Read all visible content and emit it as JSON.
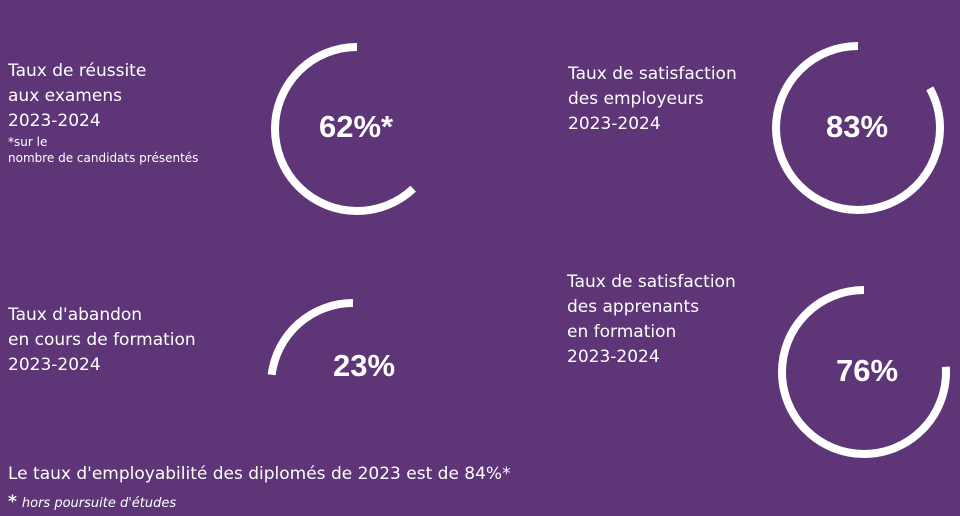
{
  "colors": {
    "background": "#5e3577",
    "text": "#ffffff",
    "ring": "#ffffff"
  },
  "stats": [
    {
      "lines": [
        "Taux de réussite",
        "aux examens",
        "2023-2024"
      ],
      "note_lines": [
        "*sur le",
        "nombre de candidats présentés"
      ],
      "value": "62%*",
      "percent": 62
    },
    {
      "lines": [
        "Taux de satisfaction",
        "des employeurs",
        "2023-2024"
      ],
      "value": "83%",
      "percent": 83
    },
    {
      "lines": [
        "Taux d'abandon",
        "en cours de formation",
        "2023-2024"
      ],
      "value": "23%",
      "percent": 23
    },
    {
      "lines": [
        "Taux de satisfaction",
        "des apprenants",
        "en formation",
        "2023-2024"
      ],
      "value": "76%",
      "percent": 76
    }
  ],
  "footer": {
    "main": "Le taux d'employabilité des diplomés de 2023 est de 84%*",
    "note_star": "*",
    "note": "hors poursuite d'études"
  }
}
